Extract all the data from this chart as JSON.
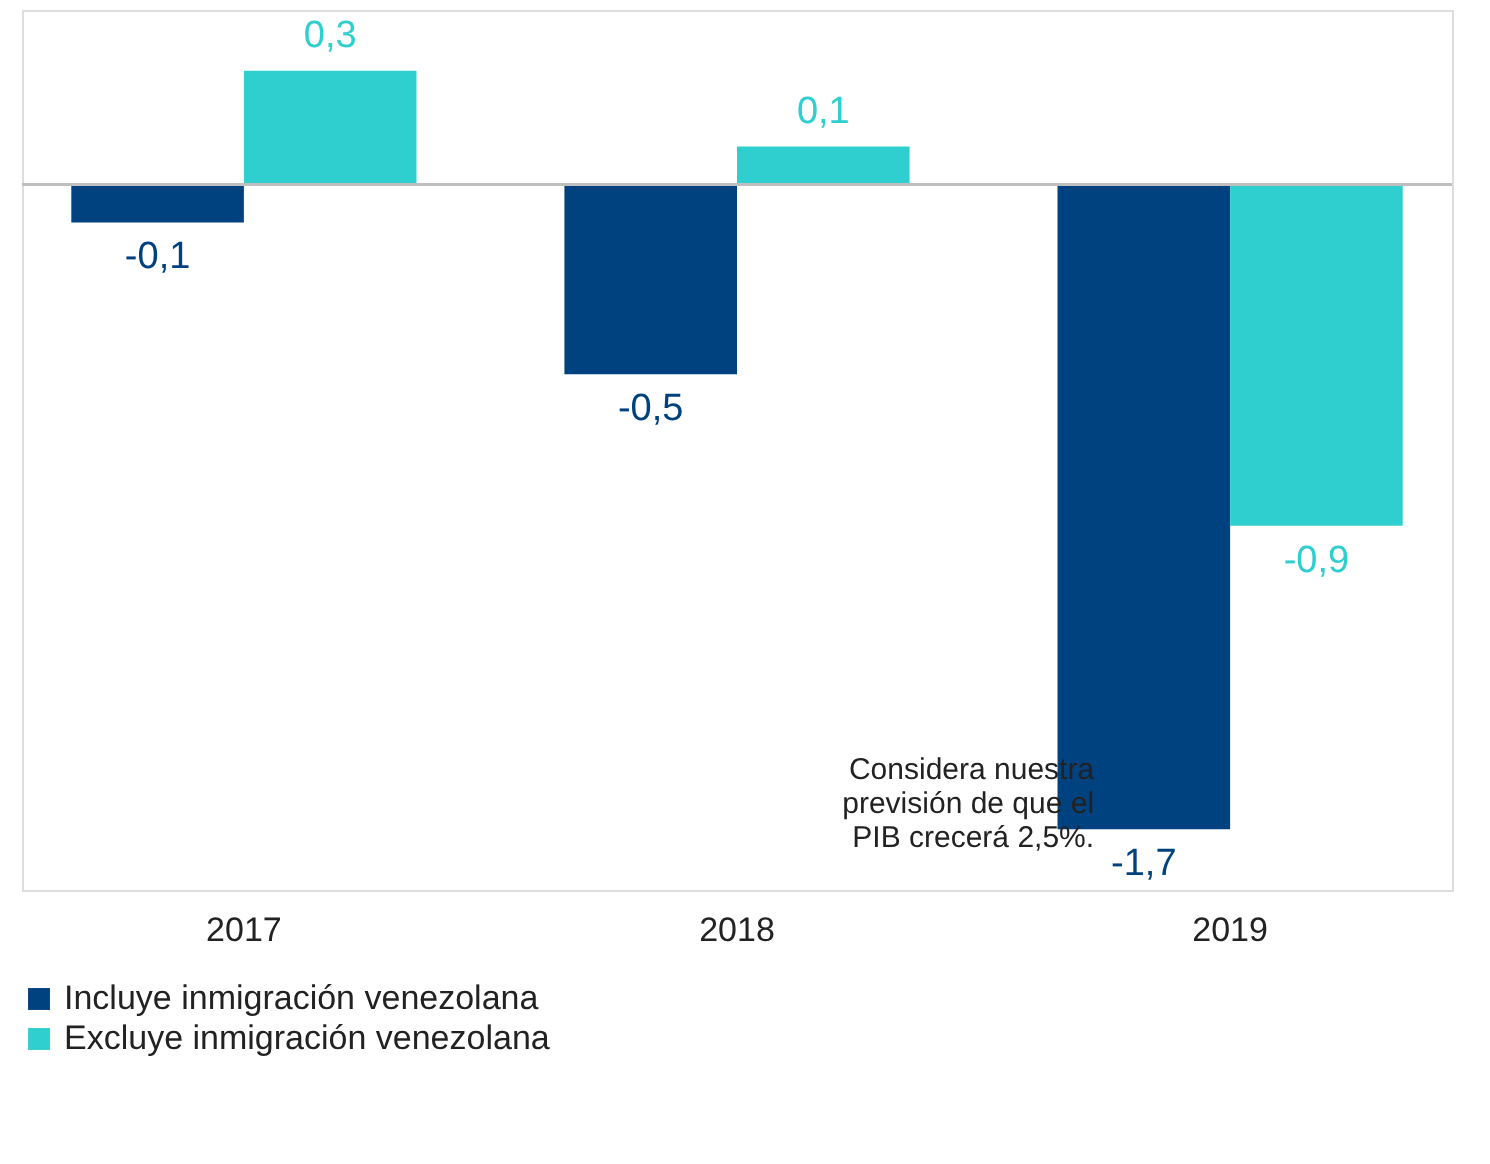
{
  "chart_data": {
    "type": "bar",
    "categories": [
      "2017",
      "2018",
      "2019"
    ],
    "series": [
      {
        "name": "Incluye inmigración venezolana",
        "color": "#00427f",
        "values": [
          -0.1,
          -0.5,
          -1.7
        ],
        "value_labels": [
          "-0,1",
          "-0,5",
          "-1,7"
        ]
      },
      {
        "name": "Excluye inmigración venezolana",
        "color": "#2fcfcf",
        "values": [
          0.3,
          0.1,
          -0.9
        ],
        "value_labels": [
          "0,3",
          "0,1",
          "-0,9"
        ]
      }
    ],
    "annotations": [
      "Considera nuestra\nprevisión de que el\nPIB crecerá 2,5%."
    ],
    "legend": "bottom left",
    "grid": false
  }
}
